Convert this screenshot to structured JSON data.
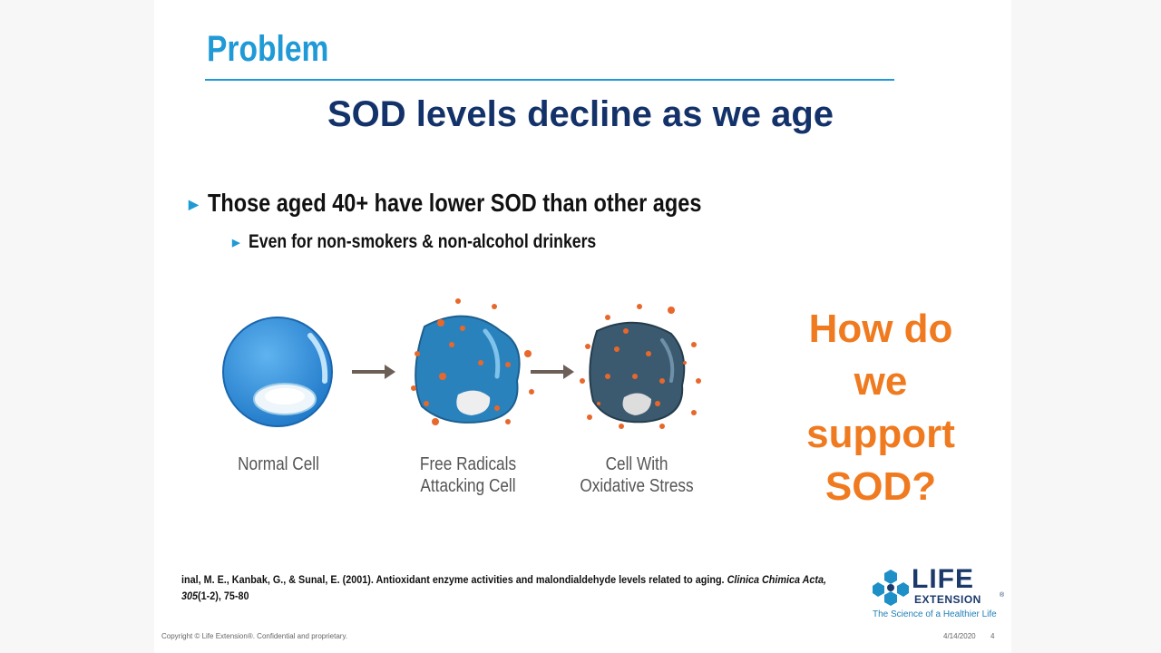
{
  "header": {
    "title": "Problem"
  },
  "headline": "SOD levels decline as we age",
  "bullets": [
    {
      "text": "Those aged 40+ have lower SOD than other ages",
      "sub": [
        "Even for non-smokers & non-alcohol drinkers"
      ]
    }
  ],
  "figure": {
    "stages": [
      {
        "label": [
          "Normal Cell"
        ]
      },
      {
        "label": [
          "Free Radicals",
          "Attacking Cell"
        ]
      },
      {
        "label": [
          "Cell With",
          "Oxidative Stress"
        ]
      }
    ]
  },
  "callout": [
    "How do",
    "we",
    "support",
    "SOD?"
  ],
  "citation": {
    "text": "inal, M. E., Kanbak, G., & Sunal, E. (2001). Antioxidant enzyme activities and malondialdehyde levels  related to aging.",
    "journal": "Clinica Chimica Acta,",
    "volume": "305",
    "issue_pages": "(1-2), 75-80"
  },
  "logo": {
    "name_top": "LIFE",
    "name_bottom": "EXTENSION",
    "mark": "®",
    "tagline": "The Science of a Healthier Life"
  },
  "footer": {
    "copyright": "Copyright © Life Extension®. Confidential and proprietary.",
    "date": "4/14/2020",
    "page": "4"
  }
}
